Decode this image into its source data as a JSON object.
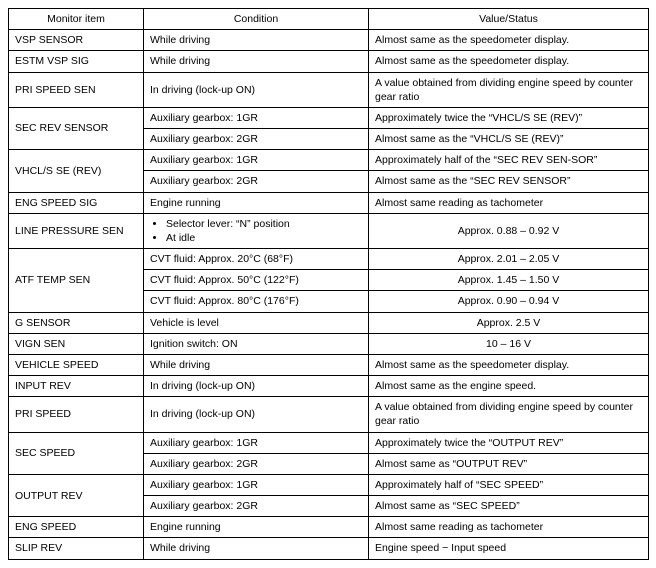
{
  "headers": {
    "monitor": "Monitor item",
    "condition": "Condition",
    "value": "Value/Status"
  },
  "rows": {
    "vsp_sensor": {
      "item": "VSP SENSOR",
      "cond": "While driving",
      "val": "Almost same as the speedometer display."
    },
    "estm_vsp_sig": {
      "item": "ESTM VSP SIG",
      "cond": "While driving",
      "val": "Almost same as the speedometer display."
    },
    "pri_speed_sen": {
      "item": "PRI SPEED SEN",
      "cond": "In driving (lock-up ON)",
      "val": "A value obtained from dividing engine speed by counter gear ratio"
    },
    "sec_rev_sensor": {
      "item": "SEC REV SENSOR",
      "cond1": "Auxiliary gearbox: 1GR",
      "val1": "Approximately twice the “VHCL/S SE (REV)”",
      "cond2": "Auxiliary gearbox: 2GR",
      "val2": "Almost same as the “VHCL/S SE (REV)”"
    },
    "vhcls_se_rev": {
      "item": "VHCL/S SE (REV)",
      "cond1": "Auxiliary gearbox: 1GR",
      "val1": "Approximately half of the “SEC REV SEN-SOR”",
      "cond2": "Auxiliary gearbox: 2GR",
      "val2": "Almost same as the “SEC REV SENSOR”"
    },
    "eng_speed_sig": {
      "item": "ENG SPEED SIG",
      "cond": "Engine running",
      "val": "Almost same reading as tachometer"
    },
    "line_pressure": {
      "item": "LINE PRESSURE SEN",
      "cond_b1": "Selector lever: “N” position",
      "cond_b2": "At idle",
      "val": "Approx. 0.88 – 0.92 V"
    },
    "atf_temp": {
      "item": "ATF TEMP SEN",
      "cond1": "CVT fluid: Approx. 20°C (68°F)",
      "val1": "Approx. 2.01 – 2.05 V",
      "cond2": "CVT fluid: Approx. 50°C (122°F)",
      "val2": "Approx. 1.45 – 1.50 V",
      "cond3": "CVT fluid: Approx. 80°C (176°F)",
      "val3": "Approx. 0.90 – 0.94 V"
    },
    "g_sensor": {
      "item": "G SENSOR",
      "cond": "Vehicle is level",
      "val": "Approx. 2.5 V"
    },
    "vign_sen": {
      "item": "VIGN SEN",
      "cond": "Ignition switch: ON",
      "val": "10 – 16 V"
    },
    "vehicle_speed": {
      "item": "VEHICLE SPEED",
      "cond": "While driving",
      "val": "Almost same as the speedometer display."
    },
    "input_rev": {
      "item": "INPUT REV",
      "cond": "In driving (lock-up ON)",
      "val": "Almost same as the engine speed."
    },
    "pri_speed": {
      "item": "PRI SPEED",
      "cond": "In driving (lock-up ON)",
      "val": "A value obtained from dividing engine speed by counter gear ratio"
    },
    "sec_speed": {
      "item": "SEC SPEED",
      "cond1": "Auxiliary gearbox: 1GR",
      "val1": "Approximately twice the “OUTPUT REV”",
      "cond2": "Auxiliary gearbox: 2GR",
      "val2": "Almost same as “OUTPUT REV”"
    },
    "output_rev": {
      "item": "OUTPUT REV",
      "cond1": "Auxiliary gearbox: 1GR",
      "val1": "Approximately half of “SEC SPEED”",
      "cond2": "Auxiliary gearbox: 2GR",
      "val2": "Almost same as “SEC SPEED”"
    },
    "eng_speed": {
      "item": "ENG SPEED",
      "cond": "Engine running",
      "val": "Almost same reading as tachometer"
    },
    "slip_rev": {
      "item": "SLIP REV",
      "cond": "While driving",
      "val": "Engine speed − Input speed"
    }
  }
}
